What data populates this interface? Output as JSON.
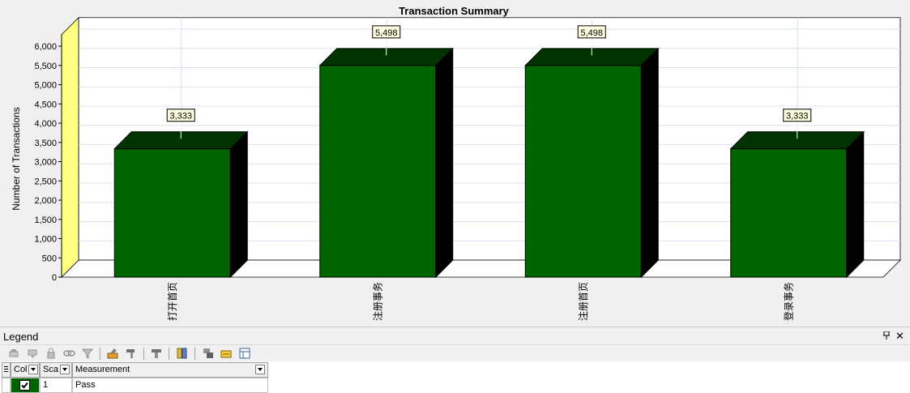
{
  "chart_data": {
    "type": "bar",
    "title": "Transaction Summary",
    "xlabel": "",
    "ylabel": "Number of Transactions",
    "ylim": [
      0,
      6300
    ],
    "yticks": [
      "0",
      "500",
      "1,000",
      "1,500",
      "2,000",
      "2,500",
      "3,000",
      "3,500",
      "4,000",
      "4,500",
      "5,000",
      "5,500",
      "6,000"
    ],
    "categories": [
      "打开首页",
      "注册事务",
      "注册首页",
      "登录事务"
    ],
    "values": [
      3333,
      5498,
      5498,
      3333
    ],
    "value_labels": [
      "3,333",
      "5,498",
      "5,498",
      "3,333"
    ],
    "grid": true,
    "colors": {
      "bar_front": "#006400",
      "bar_top": "#003300",
      "bar_side": "#000000",
      "wall": "#ffff80",
      "label_bg": "#ffffe1"
    }
  },
  "legend": {
    "title": "Legend",
    "pin_icon": "pin-icon",
    "close_label": "✕",
    "columns": [
      "Col",
      "Sca",
      "Measurement"
    ],
    "rows": [
      {
        "checked": true,
        "scale": "1",
        "measurement": "Pass"
      }
    ]
  }
}
